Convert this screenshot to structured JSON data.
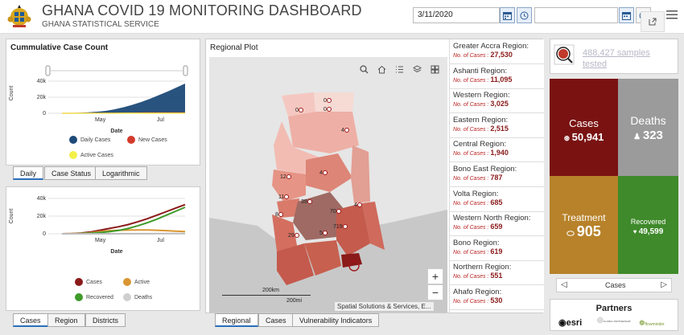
{
  "header": {
    "title": "GHANA COVID 19 MONITORING DASHBOARD",
    "subtitle": "GHANA STATISTICAL SERVICE",
    "start_date": "3/11/2020",
    "end_date": ""
  },
  "cumulative": {
    "title": "Cummulative Case Count",
    "ylabel": "Count",
    "xlabel": "Date",
    "legend": [
      "Daily Cases",
      "New Cases",
      "Active Cases"
    ],
    "tabs": [
      "Daily",
      "Case Status",
      "Logarithmic"
    ]
  },
  "status_chart": {
    "ylabel": "Count",
    "xlabel": "Date",
    "legend": [
      "Cases",
      "Active",
      "Recovered",
      "Deaths"
    ],
    "tabs": [
      "Cases",
      "Region",
      "Districts"
    ]
  },
  "chart_data": [
    {
      "type": "area",
      "title": "Cummulative Case Count",
      "xlabel": "Date",
      "ylabel": "Count",
      "x_ticks": [
        "May",
        "Jul"
      ],
      "y_ticks": [
        "0",
        "20k",
        "40k"
      ],
      "ylim": [
        0,
        50000
      ],
      "series": [
        {
          "name": "Daily Cases",
          "values": [
            0,
            200,
            600,
            1200,
            2000,
            3000,
            5000,
            7500,
            10500,
            14000,
            18000,
            22500,
            27000,
            32000,
            37000
          ]
        },
        {
          "name": "New Cases",
          "values": [
            0,
            20,
            60,
            100,
            150,
            200,
            250,
            300,
            400,
            500,
            600,
            700,
            700,
            650,
            600
          ]
        },
        {
          "name": "Active Cases",
          "values": [
            0,
            10,
            20,
            30,
            40,
            50,
            50,
            60,
            60,
            70,
            70,
            80,
            80,
            80,
            80
          ]
        }
      ]
    },
    {
      "type": "line",
      "xlabel": "Date",
      "ylabel": "Count",
      "x_ticks": [
        "May",
        "Jul"
      ],
      "y_ticks": [
        "0",
        "20k",
        "40k"
      ],
      "ylim": [
        0,
        40000
      ],
      "series": [
        {
          "name": "Cases",
          "values": [
            0,
            200,
            800,
            2000,
            4000,
            6000,
            8000,
            10500,
            13500,
            17000,
            21000,
            25000,
            29000,
            33000
          ]
        },
        {
          "name": "Active",
          "values": [
            0,
            150,
            500,
            1200,
            2500,
            3500,
            4000,
            4200,
            4400,
            4300,
            4000,
            3500,
            3000,
            2500
          ]
        },
        {
          "name": "Recovered",
          "values": [
            0,
            20,
            200,
            600,
            1400,
            2400,
            3800,
            6000,
            9000,
            12500,
            16500,
            21000,
            25500,
            30000
          ]
        },
        {
          "name": "Deaths",
          "values": [
            0,
            5,
            10,
            20,
            30,
            40,
            60,
            80,
            100,
            130,
            160,
            200,
            250,
            300
          ]
        }
      ]
    }
  ],
  "map": {
    "title": "Regional Plot",
    "scale_km": "200km",
    "scale_mi": "200mi",
    "attribution": "Spatial Solutions & Services, E...",
    "tabs": [
      "Regional",
      "Cases",
      "Vulnerability Indicators"
    ],
    "labels": [
      "0",
      "0",
      "4",
      "0",
      "12",
      "4",
      "11",
      "39",
      "70",
      "8",
      "719",
      "4",
      "29",
      "5"
    ],
    "zoom_in": "+",
    "zoom_out": "−"
  },
  "regions": [
    {
      "name": "Greater Accra Region:",
      "label": "No. of Cases :",
      "count": "27,530"
    },
    {
      "name": "Ashanti Region:",
      "label": "No. of Cases :",
      "count": "11,095"
    },
    {
      "name": "Western Region:",
      "label": "No. of Cases :",
      "count": "3,025"
    },
    {
      "name": "Eastern Region:",
      "label": "No. of Cases :",
      "count": "2,515"
    },
    {
      "name": "Central Region:",
      "label": "No. of Cases :",
      "count": "1,940"
    },
    {
      "name": "Bono East Region:",
      "label": "No. of Cases :",
      "count": "787"
    },
    {
      "name": "Volta Region:",
      "label": "No. of Cases :",
      "count": "685"
    },
    {
      "name": "Western North Region:",
      "label": "No. of Cases :",
      "count": "659"
    },
    {
      "name": "Bono Region:",
      "label": "No. of Cases :",
      "count": "619"
    },
    {
      "name": "Northern Region:",
      "label": "No. of Cases :",
      "count": "551"
    },
    {
      "name": "Ahafo Region:",
      "label": "No. of Cases :",
      "count": "530"
    }
  ],
  "samples": {
    "text": "488,427 samples tested"
  },
  "tiles": {
    "cases": {
      "label": "Cases",
      "value": "50,941",
      "color": "#7a1212"
    },
    "deaths": {
      "label": "Deaths",
      "value": "323",
      "color": "#9b9b9b"
    },
    "treatment": {
      "label": "Treatment",
      "value": "905",
      "color": "#b7822a"
    },
    "recovered": {
      "label": "Recovered",
      "value": "49,599",
      "color": "#3f8a2b"
    }
  },
  "tile_nav": {
    "label": "Cases"
  },
  "partners": {
    "title": "Partners",
    "logos": [
      "esri",
      "GLOBAL PARTNERSHIP",
      "flowminder"
    ]
  }
}
